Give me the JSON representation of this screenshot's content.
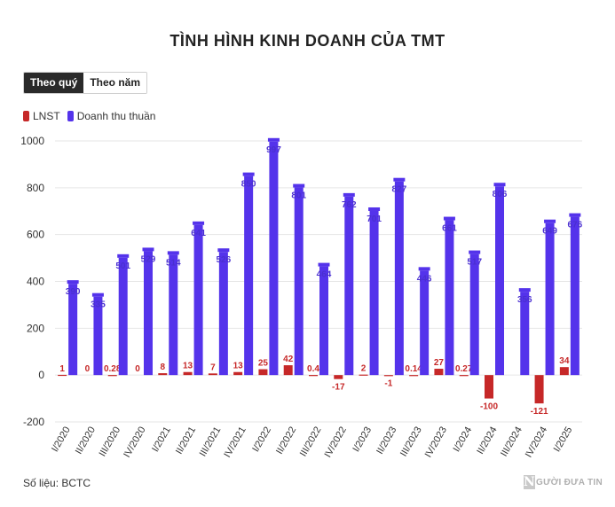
{
  "title": "TÌNH HÌNH KINH DOANH CỦA TMT",
  "toggle": {
    "quarter_label": "Theo quý",
    "year_label": "Theo năm"
  },
  "source": "Số liệu: BCTC",
  "logo": {
    "mark": "N",
    "text": "GƯỜI ĐƯA TIN"
  },
  "colors": {
    "lnst": "#c62828",
    "revenue": "#5433eb"
  },
  "chart_data": {
    "type": "bar",
    "title": "TÌNH HÌNH KINH DOANH CỦA TMT",
    "xlabel": "",
    "ylabel": "",
    "ylim": [
      -200,
      1000
    ],
    "yticks": [
      -200,
      0,
      200,
      400,
      600,
      800,
      1000
    ],
    "grid": true,
    "legend_position": "top-left",
    "categories": [
      "I/2020",
      "II/2020",
      "III/2020",
      "IV/2020",
      "I/2021",
      "II/2021",
      "III/2021",
      "IV/2021",
      "I/2022",
      "II/2022",
      "III/2022",
      "IV/2022",
      "I/2023",
      "II/2023",
      "III/2023",
      "IV/2023",
      "I/2024",
      "II/2024",
      "III/2024",
      "IV/2024",
      "I/2025"
    ],
    "series": [
      {
        "name": "LNST",
        "color": "#c62828",
        "values": [
          1,
          0,
          0.28,
          0,
          8,
          13,
          7,
          13,
          25,
          42,
          0.4,
          -17,
          2,
          -1,
          0.14,
          27,
          0.27,
          -100,
          null,
          -121,
          34
        ],
        "labels": [
          "1",
          "0",
          "0.28",
          "0",
          "8",
          "13",
          "7",
          "13",
          "25",
          "42",
          "0.4",
          "-17",
          "2",
          "-1",
          "0.14",
          "27",
          "0.27",
          "-100",
          "",
          "-121",
          "34"
        ]
      },
      {
        "name": "Doanh thu thuần",
        "color": "#5433eb",
        "values": [
          390,
          335,
          501,
          529,
          514,
          641,
          526,
          850,
          997,
          801,
          464,
          762,
          701,
          827,
          446,
          661,
          517,
          806,
          356,
          649,
          676
        ],
        "labels": [
          "390",
          "335",
          "501",
          "529",
          "514",
          "641",
          "526",
          "850",
          "997",
          "801",
          "464",
          "762",
          "701",
          "827",
          "446",
          "661",
          "517",
          "806",
          "356",
          "649",
          "676"
        ]
      }
    ]
  }
}
